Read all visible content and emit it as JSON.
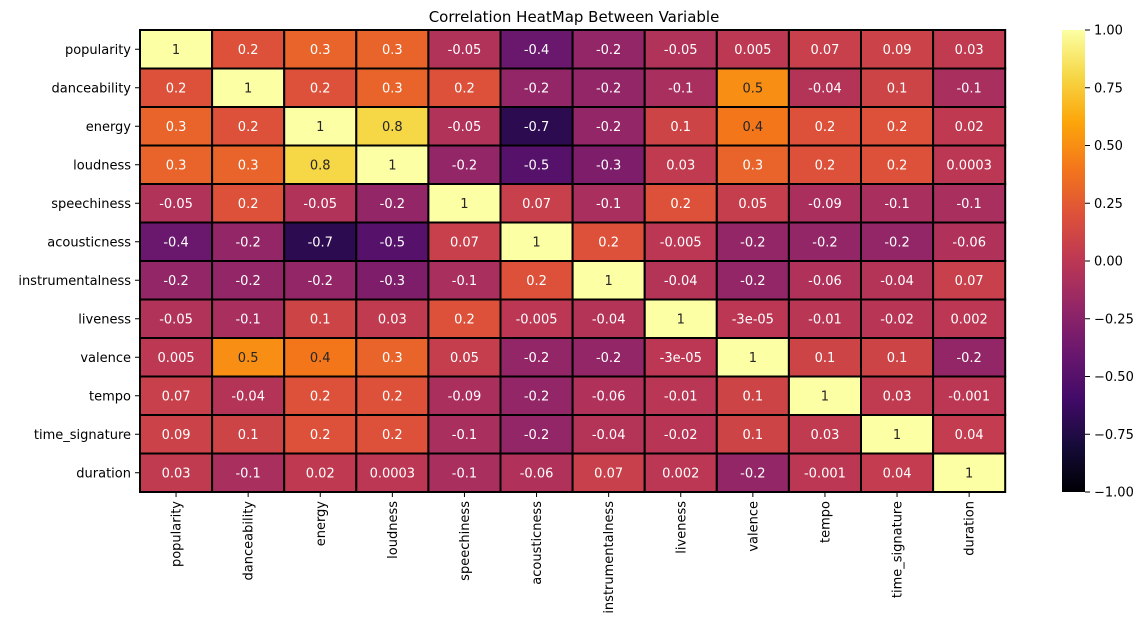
{
  "chart_data": {
    "type": "heatmap",
    "title": "Correlation HeatMap Between Variable",
    "xlabel": "",
    "ylabel": "",
    "colormap": "inferno",
    "vmin": -1,
    "vmax": 1,
    "colorbar_ticks": [
      "1.00",
      "0.75",
      "0.50",
      "0.25",
      "0.00",
      "−0.25",
      "−0.50",
      "−0.75",
      "−1.00"
    ],
    "colorbar_tick_values": [
      1.0,
      0.75,
      0.5,
      0.25,
      0.0,
      -0.25,
      -0.5,
      -0.75,
      -1.0
    ],
    "cell_border_color": "#000000",
    "labels": [
      "popularity",
      "danceability",
      "energy",
      "loudness",
      "speechiness",
      "acousticness",
      "instrumentalness",
      "liveness",
      "valence",
      "tempo",
      "time_signature",
      "duration"
    ],
    "values": [
      [
        1,
        0.2,
        0.3,
        0.3,
        -0.05,
        -0.4,
        -0.2,
        -0.05,
        0.005,
        0.07,
        0.09,
        0.03
      ],
      [
        0.2,
        1,
        0.2,
        0.3,
        0.2,
        -0.2,
        -0.2,
        -0.1,
        0.5,
        -0.04,
        0.1,
        -0.1
      ],
      [
        0.3,
        0.2,
        1,
        0.8,
        -0.05,
        -0.7,
        -0.2,
        0.1,
        0.4,
        0.2,
        0.2,
        0.02
      ],
      [
        0.3,
        0.3,
        0.8,
        1,
        -0.2,
        -0.5,
        -0.3,
        0.03,
        0.3,
        0.2,
        0.2,
        0.0003
      ],
      [
        -0.05,
        0.2,
        -0.05,
        -0.2,
        1,
        0.07,
        -0.1,
        0.2,
        0.05,
        -0.09,
        -0.1,
        -0.1
      ],
      [
        -0.4,
        -0.2,
        -0.7,
        -0.5,
        0.07,
        1,
        0.2,
        -0.005,
        -0.2,
        -0.2,
        -0.2,
        -0.06
      ],
      [
        -0.2,
        -0.2,
        -0.2,
        -0.3,
        -0.1,
        0.2,
        1,
        -0.04,
        -0.2,
        -0.06,
        -0.04,
        0.07
      ],
      [
        -0.05,
        -0.1,
        0.1,
        0.03,
        0.2,
        -0.005,
        -0.04,
        1,
        -3e-05,
        -0.01,
        -0.02,
        0.002
      ],
      [
        0.005,
        0.5,
        0.4,
        0.3,
        0.05,
        -0.2,
        -0.2,
        -3e-05,
        1,
        0.1,
        0.1,
        -0.2
      ],
      [
        0.07,
        -0.04,
        0.2,
        0.2,
        -0.09,
        -0.2,
        -0.06,
        -0.01,
        0.1,
        1,
        0.03,
        -0.001
      ],
      [
        0.09,
        0.1,
        0.2,
        0.2,
        -0.1,
        -0.2,
        -0.04,
        -0.02,
        0.1,
        0.03,
        1,
        0.04
      ],
      [
        0.03,
        -0.1,
        0.02,
        0.0003,
        -0.1,
        -0.06,
        0.07,
        0.002,
        -0.2,
        -0.001,
        0.04,
        1
      ]
    ],
    "annotations": [
      [
        "1",
        "0.2",
        "0.3",
        "0.3",
        "-0.05",
        "-0.4",
        "-0.2",
        "-0.05",
        "0.005",
        "0.07",
        "0.09",
        "0.03"
      ],
      [
        "0.2",
        "1",
        "0.2",
        "0.3",
        "0.2",
        "-0.2",
        "-0.2",
        "-0.1",
        "0.5",
        "-0.04",
        "0.1",
        "-0.1"
      ],
      [
        "0.3",
        "0.2",
        "1",
        "0.8",
        "-0.05",
        "-0.7",
        "-0.2",
        "0.1",
        "0.4",
        "0.2",
        "0.2",
        "0.02"
      ],
      [
        "0.3",
        "0.3",
        "0.8",
        "1",
        "-0.2",
        "-0.5",
        "-0.3",
        "0.03",
        "0.3",
        "0.2",
        "0.2",
        "0.0003"
      ],
      [
        "-0.05",
        "0.2",
        "-0.05",
        "-0.2",
        "1",
        "0.07",
        "-0.1",
        "0.2",
        "0.05",
        "-0.09",
        "-0.1",
        "-0.1"
      ],
      [
        "-0.4",
        "-0.2",
        "-0.7",
        "-0.5",
        "0.07",
        "1",
        "0.2",
        "-0.005",
        "-0.2",
        "-0.2",
        "-0.2",
        "-0.06"
      ],
      [
        "-0.2",
        "-0.2",
        "-0.2",
        "-0.3",
        "-0.1",
        "0.2",
        "1",
        "-0.04",
        "-0.2",
        "-0.06",
        "-0.04",
        "0.07"
      ],
      [
        "-0.05",
        "-0.1",
        "0.1",
        "0.03",
        "0.2",
        "-0.005",
        "-0.04",
        "1",
        "-3e-05",
        "-0.01",
        "-0.02",
        "0.002"
      ],
      [
        "0.005",
        "0.5",
        "0.4",
        "0.3",
        "0.05",
        "-0.2",
        "-0.2",
        "-3e-05",
        "1",
        "0.1",
        "0.1",
        "-0.2"
      ],
      [
        "0.07",
        "-0.04",
        "0.2",
        "0.2",
        "-0.09",
        "-0.2",
        "-0.06",
        "-0.01",
        "0.1",
        "1",
        "0.03",
        "-0.001"
      ],
      [
        "0.09",
        "0.1",
        "0.2",
        "0.2",
        "-0.1",
        "-0.2",
        "-0.04",
        "-0.02",
        "0.1",
        "0.03",
        "1",
        "0.04"
      ],
      [
        "0.03",
        "-0.1",
        "0.02",
        "0.0003",
        "-0.1",
        "-0.06",
        "0.07",
        "0.002",
        "-0.2",
        "-0.001",
        "0.04",
        "1"
      ]
    ]
  }
}
